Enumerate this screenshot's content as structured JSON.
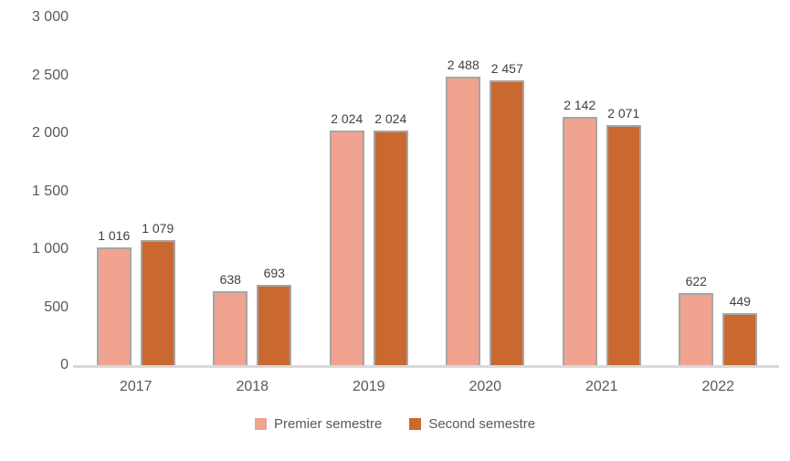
{
  "chart_data": {
    "type": "bar",
    "title": "",
    "xlabel": "",
    "ylabel": "",
    "categories": [
      "2017",
      "2018",
      "2019",
      "2020",
      "2021",
      "2022"
    ],
    "series": [
      {
        "name": "Premier semestre",
        "color": "#F0A38F",
        "values": [
          1016,
          638,
          2024,
          2488,
          2142,
          622
        ],
        "labels": [
          "1 016",
          "638",
          "2 024",
          "2 488",
          "2 142",
          "622"
        ]
      },
      {
        "name": "Second semestre",
        "color": "#C9682F",
        "values": [
          1079,
          693,
          2024,
          2457,
          2071,
          449
        ],
        "labels": [
          "1 079",
          "693",
          "2 024",
          "2 457",
          "2 071",
          "449"
        ]
      }
    ],
    "y_axis": {
      "min": 0,
      "max": 3000,
      "step": 500,
      "tick_labels": [
        "0",
        "500",
        "1 000",
        "1 500",
        "2 000",
        "2 500",
        "3 000"
      ]
    },
    "grid": false,
    "legend_position": "bottom",
    "colors": {
      "bar_stroke": "#A6A6A6",
      "axis_line": "#D9D9D9",
      "tick_text": "#595959",
      "data_label_text": "#404040"
    }
  }
}
